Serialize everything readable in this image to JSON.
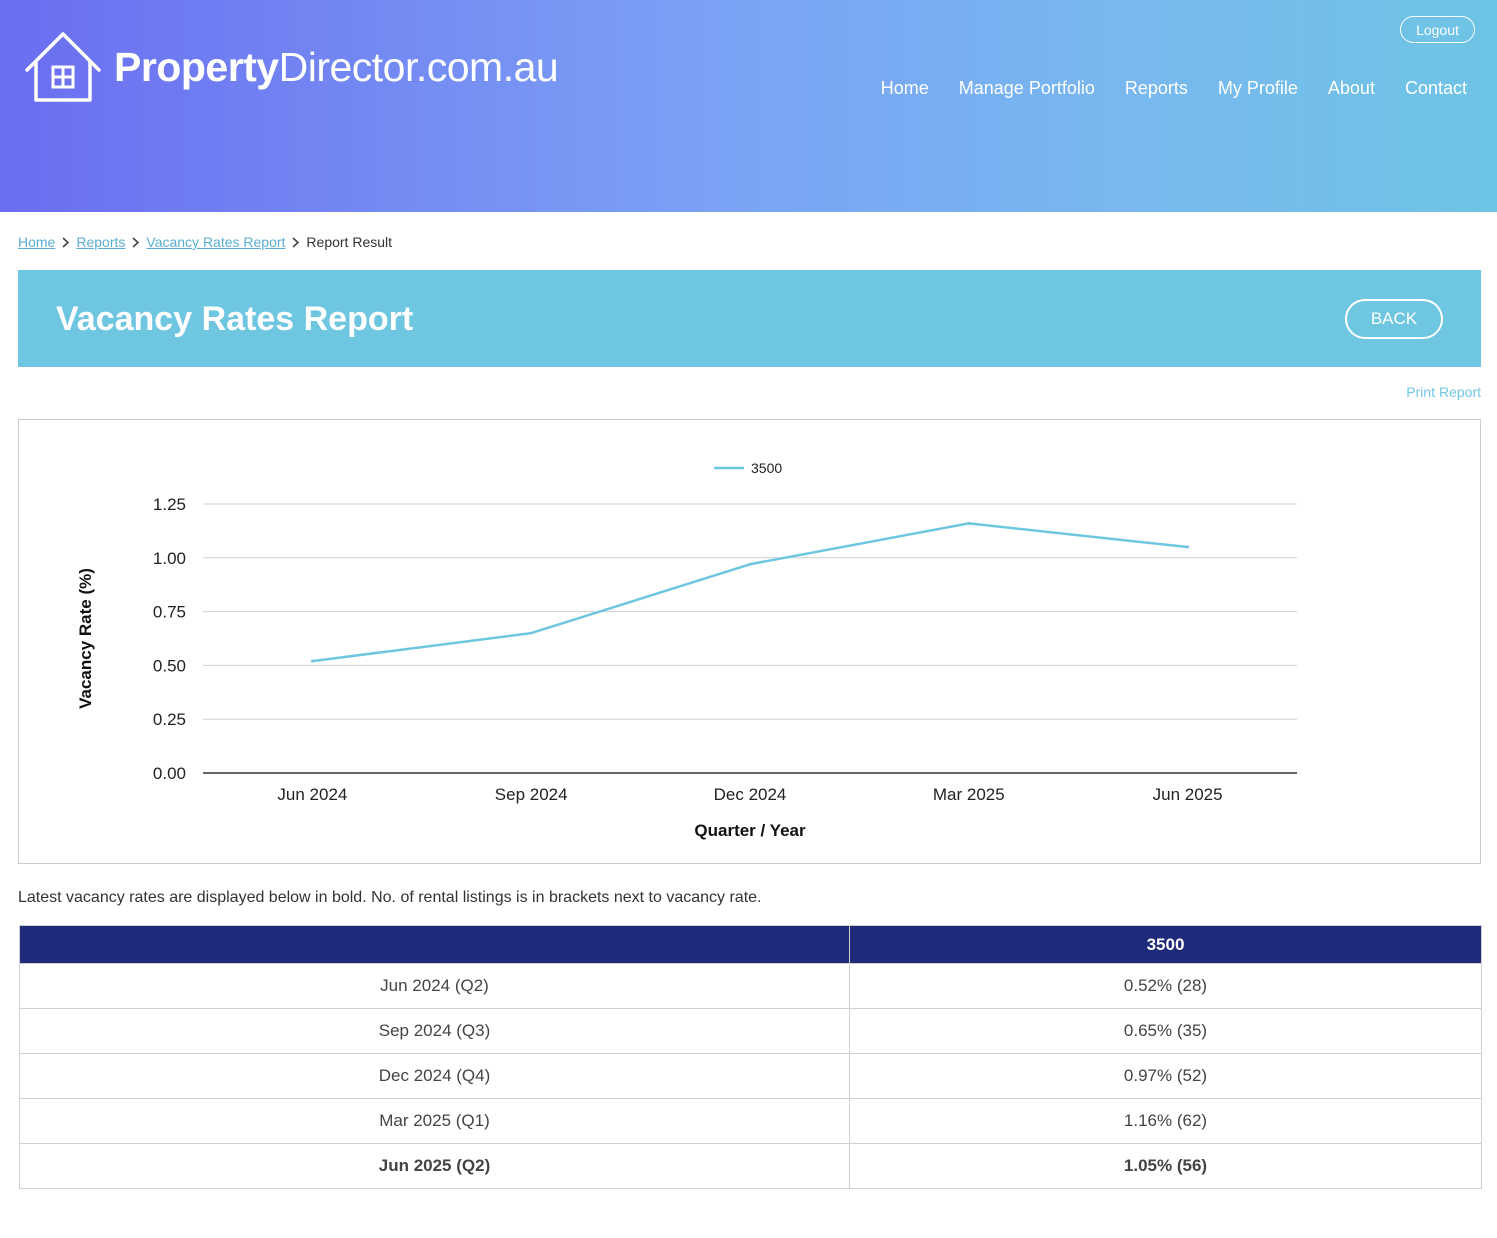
{
  "header": {
    "logo_bold": "Property",
    "logo_light": "Director.com.au",
    "logout_label": "Logout",
    "nav": [
      "Home",
      "Manage Portfolio",
      "Reports",
      "My Profile",
      "About",
      "Contact"
    ]
  },
  "breadcrumb": {
    "items": [
      "Home",
      "Reports",
      "Vacancy Rates Report"
    ],
    "current": "Report Result"
  },
  "page": {
    "title": "Vacancy Rates Report",
    "back_label": "BACK",
    "print_label": "Print Report",
    "note": "Latest vacancy rates are displayed below in bold. No. of rental listings is in brackets next to vacancy rate."
  },
  "colors": {
    "header_gradient_start": "#6b6df0",
    "header_gradient_end": "#6ec4e4",
    "title_bar": "#6fc6e1",
    "table_header": "#1f2a7b",
    "series_line": "#6fc6e1"
  },
  "chart_data": {
    "type": "line",
    "categories": [
      "Jun 2024",
      "Sep 2024",
      "Dec 2024",
      "Mar 2025",
      "Jun 2025"
    ],
    "series": [
      {
        "name": "3500",
        "values": [
          0.52,
          0.65,
          0.97,
          1.16,
          1.05
        ]
      }
    ],
    "xlabel": "Quarter / Year",
    "ylabel": "Vacancy Rate (%)",
    "ylim": [
      0,
      1.25
    ],
    "yticks": [
      "0.00",
      "0.25",
      "0.50",
      "0.75",
      "1.00",
      "1.25"
    ],
    "grid": true,
    "legend": "top-center"
  },
  "table": {
    "header": [
      "",
      "3500"
    ],
    "rows": [
      {
        "quarter": "Jun 2024 (Q2)",
        "value": "0.52% (28)",
        "latest": false
      },
      {
        "quarter": "Sep 2024 (Q3)",
        "value": "0.65% (35)",
        "latest": false
      },
      {
        "quarter": "Dec 2024 (Q4)",
        "value": "0.97% (52)",
        "latest": false
      },
      {
        "quarter": "Mar 2025 (Q1)",
        "value": "1.16% (62)",
        "latest": false
      },
      {
        "quarter": "Jun 2025 (Q2)",
        "value": "1.05% (56)",
        "latest": true
      }
    ]
  }
}
